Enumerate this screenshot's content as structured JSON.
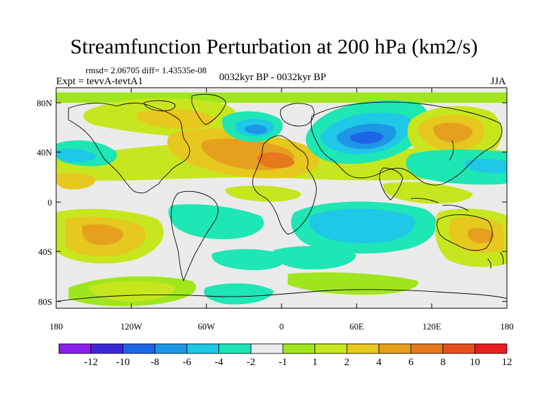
{
  "title": "Streamfunction Perturbation at 200 hPa (km2/s)",
  "stats_text": "rmsd= 2.06705 diff= 1.43535e-08",
  "experiment_text": "Expt = tevvA-tevtA1",
  "period_text": "0032kyr BP - 0032kyr BP",
  "season_text": "JJA",
  "map": {
    "lat_ticks": [
      "80N",
      "40N",
      "0",
      "40S",
      "80S"
    ],
    "lon_ticks": [
      "180",
      "120W",
      "60W",
      "0",
      "60E",
      "120E",
      "180"
    ]
  },
  "colorbar": {
    "colors": [
      "#8a1ee6",
      "#3c28d2",
      "#1e64e6",
      "#1e96e6",
      "#1ec8e6",
      "#1ee6b4",
      "#ebebeb",
      "#a0e61e",
      "#c8e61e",
      "#e6c81e",
      "#e6a01e",
      "#e6781e",
      "#e6501e",
      "#e61e1e"
    ],
    "labels": [
      "-12",
      "-10",
      "-8",
      "-6",
      "-4",
      "-2",
      "-1",
      "1",
      "2",
      "4",
      "6",
      "8",
      "10",
      "12"
    ]
  }
}
